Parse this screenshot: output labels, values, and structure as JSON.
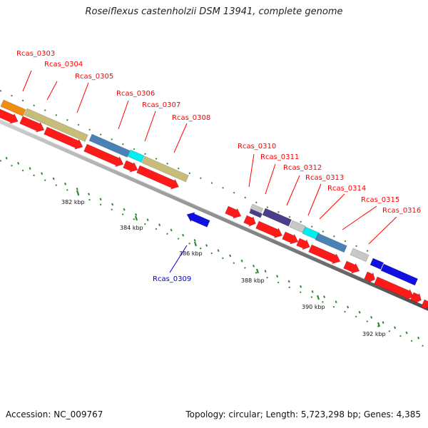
{
  "title": "Roseiflexus castenholzii DSM 13941, complete genome",
  "footer": {
    "accession": "Accession: NC_009767",
    "topology": "Topology: circular; Length: 5,723,298 bp; Genes: 4,385"
  },
  "axis": {
    "ticks": [
      "382 kbp",
      "384 kbp",
      "386 kbp",
      "388 kbp",
      "390 kbp",
      "392 kbp"
    ]
  },
  "genes": [
    {
      "name": "Rcas_0303",
      "color": "#ff0000"
    },
    {
      "name": "Rcas_0304",
      "color": "#ff0000"
    },
    {
      "name": "Rcas_0305",
      "color": "#ff0000"
    },
    {
      "name": "Rcas_0306",
      "color": "#ff0000"
    },
    {
      "name": "Rcas_0307",
      "color": "#ff0000"
    },
    {
      "name": "Rcas_0308",
      "color": "#ff0000"
    },
    {
      "name": "Rcas_0309",
      "color": "#0000cc"
    },
    {
      "name": "Rcas_0310",
      "color": "#ff0000"
    },
    {
      "name": "Rcas_0311",
      "color": "#ff0000"
    },
    {
      "name": "Rcas_0312",
      "color": "#ff0000"
    },
    {
      "name": "Rcas_0313",
      "color": "#ff0000"
    },
    {
      "name": "Rcas_0314",
      "color": "#ff0000"
    },
    {
      "name": "Rcas_0315",
      "color": "#ff0000"
    },
    {
      "name": "Rcas_0316",
      "color": "#ff0000"
    }
  ],
  "feature_colors": {
    "forward_cds": "#ff1a1a",
    "reverse_cds": "#1010e0",
    "orange": "#f08c10",
    "khaki": "#c8bd78",
    "steel_blue": "#4a82b6",
    "cyan": "#00eeee",
    "indigo": "#4a3d8a",
    "gray": "#c8c8c8"
  }
}
